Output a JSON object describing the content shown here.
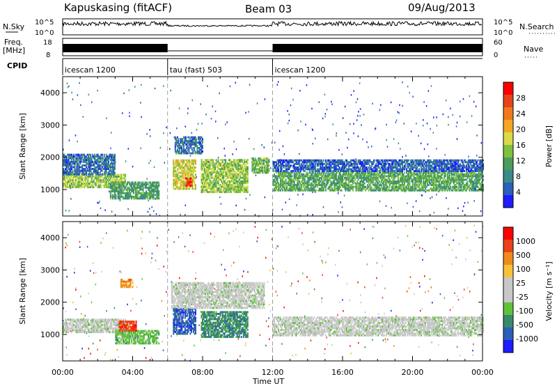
{
  "header": {
    "station": "Kapuskasing (fitACF)",
    "beam": "Beam 03",
    "date": "09/Aug/2013"
  },
  "top_panels": {
    "nsky": {
      "label": "N.Sky",
      "ticks": [
        "10^5",
        "10^0"
      ],
      "right_label": "N.Search",
      "right_ticks": [
        "10^5",
        "10^0"
      ]
    },
    "freq": {
      "label_line1": "Freq.",
      "label_line2": "[MHz]",
      "ticks": [
        "18",
        "8"
      ],
      "right_label": "Nave",
      "right_ticks": [
        "60",
        "0"
      ]
    },
    "cpid": {
      "label": "CPID",
      "segments": [
        {
          "name": "icescan 1200",
          "start_h": 0,
          "end_h": 6
        },
        {
          "name": "tau (fast) 503",
          "start_h": 6,
          "end_h": 12
        },
        {
          "name": "icescan 1200",
          "start_h": 12,
          "end_h": 24
        }
      ]
    }
  },
  "colors": {
    "power": [
      "#1d1dff",
      "#2b5fb9",
      "#3a8a8a",
      "#4a9d5a",
      "#7dc13c",
      "#d9d94a",
      "#f5a623",
      "#f07a1a",
      "#e8421a",
      "#ff0000"
    ],
    "velocity": [
      "#1d1dff",
      "#2b5fb9",
      "#3a8a6a",
      "#5fc23a",
      "#c8c8c8",
      "#c8c8c8",
      "#f5c23a",
      "#f08a1a",
      "#e8421a",
      "#ff0000"
    ]
  },
  "chart_data": [
    {
      "type": "heatmap",
      "name": "power",
      "ylabel": "Slant Range [km]",
      "xlabel": "Time UT",
      "x_ticks": [
        "00:00",
        "04:00",
        "08:00",
        "12:00",
        "16:00",
        "20:00",
        "00:00"
      ],
      "xlim": [
        0,
        24
      ],
      "ylim": [
        180,
        4500
      ],
      "y_ticks": [
        1000,
        2000,
        3000,
        4000
      ],
      "colorbar": {
        "label": "Power [dB]",
        "ticks": [
          "28",
          "24",
          "20",
          "16",
          "12",
          "8",
          "4"
        ],
        "range": [
          0,
          30
        ]
      },
      "bands": [
        {
          "t0": 0.0,
          "t1": 3.6,
          "r0": 1050,
          "r1": 1450,
          "v": 14
        },
        {
          "t0": 0.0,
          "t1": 3.0,
          "r0": 1450,
          "r1": 2100,
          "v": 6
        },
        {
          "t0": 2.7,
          "t1": 5.5,
          "r0": 700,
          "r1": 1250,
          "v": 10
        },
        {
          "t0": 6.3,
          "t1": 7.6,
          "r0": 1000,
          "r1": 1900,
          "v": 16
        },
        {
          "t0": 7.0,
          "t1": 7.4,
          "r0": 1100,
          "r1": 1350,
          "v": 26
        },
        {
          "t0": 7.9,
          "t1": 10.6,
          "r0": 900,
          "r1": 1900,
          "v": 14
        },
        {
          "t0": 6.4,
          "t1": 8.0,
          "r0": 2100,
          "r1": 2600,
          "v": 6
        },
        {
          "t0": 10.8,
          "t1": 11.8,
          "r0": 1500,
          "r1": 1950,
          "v": 12
        },
        {
          "t0": 12.0,
          "t1": 24.0,
          "r0": 950,
          "r1": 1550,
          "v": 11
        },
        {
          "t0": 12.0,
          "t1": 24.0,
          "r0": 1550,
          "r1": 1900,
          "v": 5
        }
      ]
    },
    {
      "type": "heatmap",
      "name": "velocity",
      "ylabel": "Slant Range [km]",
      "xlabel": "Time UT",
      "x_ticks": [
        "00:00",
        "04:00",
        "08:00",
        "12:00",
        "16:00",
        "20:00",
        "00:00"
      ],
      "xlim": [
        0,
        24
      ],
      "ylim": [
        180,
        4500
      ],
      "y_ticks": [
        1000,
        2000,
        3000,
        4000
      ],
      "colorbar": {
        "label": "Velocity [m s⁻¹]",
        "ticks": [
          "1000",
          "500",
          "100",
          "25",
          "-25",
          "-100",
          "-500",
          "-1000"
        ]
      },
      "bands": [
        {
          "t0": 0.0,
          "t1": 3.6,
          "r0": 1050,
          "r1": 1450,
          "c": 4
        },
        {
          "t0": 3.0,
          "t1": 5.5,
          "r0": 700,
          "r1": 1100,
          "c": 3
        },
        {
          "t0": 3.2,
          "t1": 4.2,
          "r0": 1100,
          "r1": 1400,
          "c": 8
        },
        {
          "t0": 6.3,
          "t1": 7.6,
          "r0": 1000,
          "r1": 1800,
          "c": 1
        },
        {
          "t0": 7.9,
          "t1": 10.6,
          "r0": 900,
          "r1": 1700,
          "c": 2
        },
        {
          "t0": 6.2,
          "t1": 11.5,
          "r0": 1800,
          "r1": 2600,
          "c": 4
        },
        {
          "t0": 12.0,
          "t1": 24.0,
          "r0": 950,
          "r1": 1550,
          "c": 4
        },
        {
          "t0": 3.3,
          "t1": 4.0,
          "r0": 2450,
          "r1": 2700,
          "c": 7
        }
      ]
    }
  ]
}
